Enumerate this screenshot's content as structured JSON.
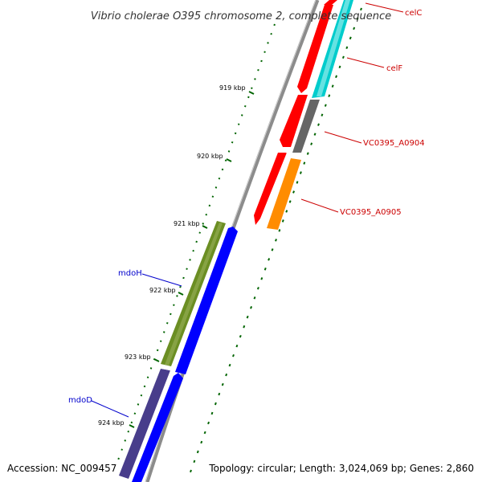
{
  "title": "Vibrio cholerae O395 chromosome 2, complete sequence",
  "footer": {
    "accession": "Accession: NC_009457",
    "summary": "Topology: circular; Length: 3,024,069 bp; Genes: 2,860"
  },
  "scale_ticks": [
    {
      "label": "919 kbp"
    },
    {
      "label": "920 kbp"
    },
    {
      "label": "921 kbp"
    },
    {
      "label": "922 kbp"
    },
    {
      "label": "923 kbp"
    },
    {
      "label": "924 kbp"
    }
  ],
  "gene_labels": [
    {
      "text": "celC",
      "color": "#cc0000"
    },
    {
      "text": "celF",
      "color": "#cc0000"
    },
    {
      "text": "VC0395_A0904",
      "color": "#cc0000"
    },
    {
      "text": "VC0395_A0905",
      "color": "#cc0000"
    },
    {
      "text": "mdoH",
      "color": "#0000cc"
    },
    {
      "text": "mdoD",
      "color": "#0000cc"
    }
  ],
  "colors": {
    "backbone": "#8c8c8c",
    "red_cds": "#ff0000",
    "cyan_cds": "#00cccc",
    "gray_cds": "#666666",
    "orange_cds": "#ff8c00",
    "olive_cds": "#6b8e23",
    "blue_cds": "#0000ff",
    "slate_cds": "#483d8b",
    "tick_green": "#006400"
  }
}
